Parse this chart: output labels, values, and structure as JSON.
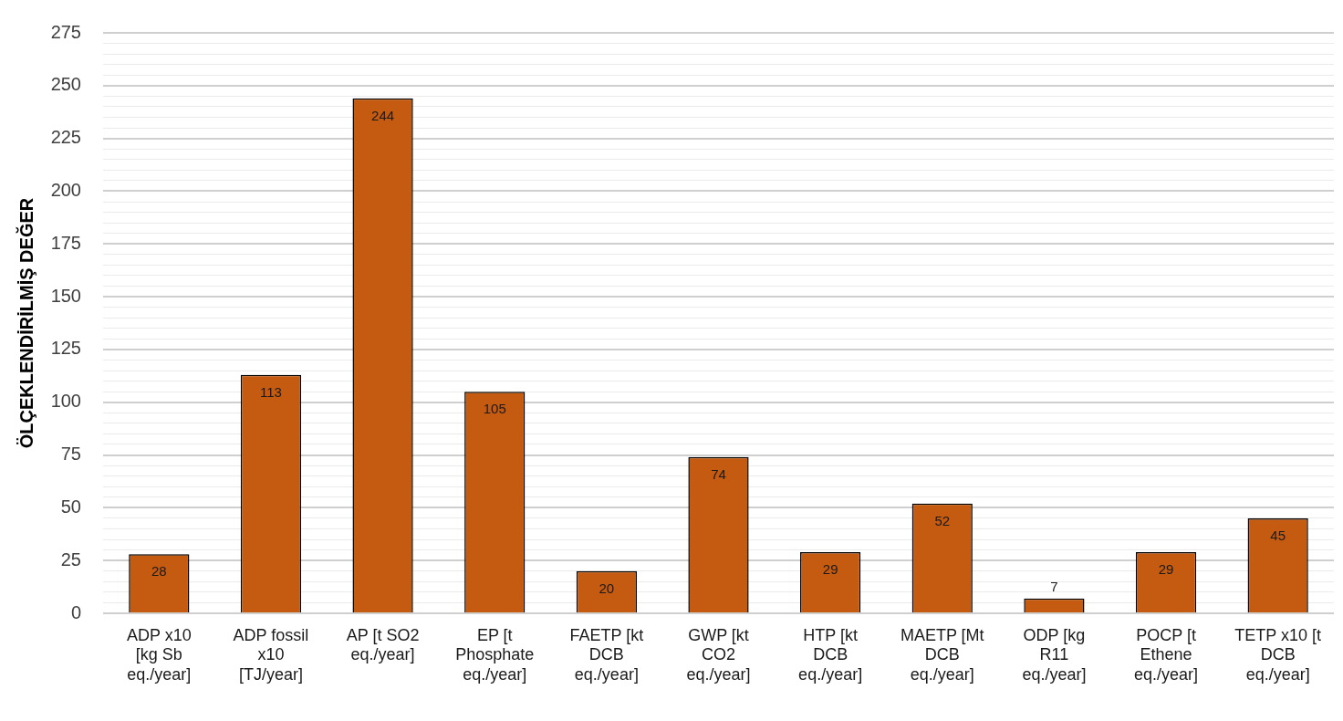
{
  "chart_data": {
    "type": "bar",
    "ylabel": "ÖLÇEKLENDİRİLMİŞ DEĞER",
    "categories": [
      "ADP x10 [kg Sb eq./year]",
      "ADP fossil x10 [TJ/year]",
      "AP [t SO2 eq./year]",
      "EP [t Phosphate eq./year]",
      "FAETP [kt DCB eq./year]",
      "GWP [kt CO2 eq./year]",
      "HTP [kt DCB eq./year]",
      "MAETP [Mt DCB eq./year]",
      "ODP [kg R11 eq./year]",
      "POCP [t Ethene eq./year]",
      "TETP x10 [t DCB eq./year]"
    ],
    "values": [
      28,
      113,
      244,
      105,
      20,
      74,
      29,
      52,
      7,
      29,
      45
    ],
    "color": "#c55a11",
    "data_labels": true,
    "ylim": [
      0,
      275
    ],
    "yticks": [
      0,
      {
        "value": 5,
        "label": null
      },
      {
        "value": 10,
        "label": null
      },
      {
        "value": 15,
        "label": null
      },
      {
        "value": 20,
        "label": null
      },
      25,
      {
        "value": 30,
        "label": null
      },
      {
        "value": 35,
        "label": null
      },
      {
        "value": 40,
        "label": null
      },
      {
        "value": 45,
        "label": null
      },
      50,
      {
        "value": 55,
        "label": null
      },
      {
        "value": 60,
        "label": null
      },
      {
        "value": 65,
        "label": null
      },
      {
        "value": 70,
        "label": null
      },
      75,
      {
        "value": 80,
        "label": null
      },
      {
        "value": 85,
        "label": null
      },
      {
        "value": 90,
        "label": null
      },
      {
        "value": 95,
        "label": null
      },
      100,
      {
        "value": 105,
        "label": null
      },
      {
        "value": 110,
        "label": null
      },
      {
        "value": 115,
        "label": null
      },
      {
        "value": 120,
        "label": null
      },
      125,
      {
        "value": 130,
        "label": null
      },
      {
        "value": 135,
        "label": null
      },
      {
        "value": 140,
        "label": null
      },
      {
        "value": 145,
        "label": null
      },
      150,
      {
        "value": 155,
        "label": null
      },
      {
        "value": 160,
        "label": null
      },
      {
        "value": 165,
        "label": null
      },
      {
        "value": 170,
        "label": null
      },
      175,
      {
        "value": 180,
        "label": null
      },
      {
        "value": 185,
        "label": null
      },
      {
        "value": 190,
        "label": null
      },
      {
        "value": 195,
        "label": null
      },
      200,
      {
        "value": 205,
        "label": null
      },
      {
        "value": 210,
        "label": null
      },
      {
        "value": 215,
        "label": null
      },
      {
        "value": 220,
        "label": null
      },
      225,
      {
        "value": 230,
        "label": null
      },
      {
        "value": 235,
        "label": null
      },
      {
        "value": 240,
        "label": null
      },
      {
        "value": 245,
        "label": null
      },
      250,
      {
        "value": 255,
        "label": null
      },
      {
        "value": 260,
        "label": null
      },
      {
        "value": 265,
        "label": null
      },
      {
        "value": 270,
        "label": null
      },
      275
    ],
    "grid": "y"
  }
}
